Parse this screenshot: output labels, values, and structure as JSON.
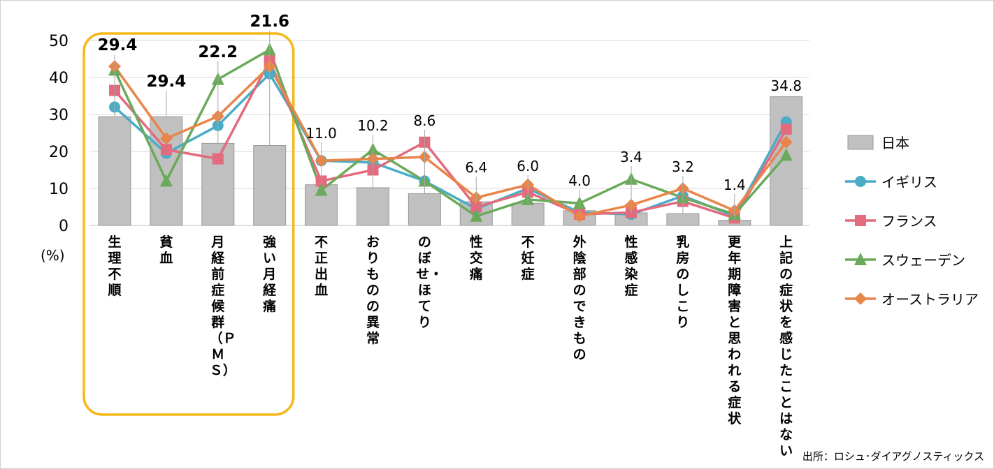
{
  "chart_data": {
    "type": "bar+line",
    "y_axis": {
      "min": 0,
      "max": 50,
      "ticks": [
        0,
        10,
        20,
        30,
        40,
        50
      ],
      "unit": "(%)"
    },
    "categories": [
      "生理不順",
      "貧血",
      "月経前症候群（PMS）",
      "強い月経痛",
      "不正出血",
      "おりものの異常",
      "のぼせ・ほてり",
      "性交痛",
      "不妊症",
      "外陰部のできもの",
      "性感染症",
      "乳房のしこり",
      "更年期障害と思われる症状",
      "上記の症状を感じたことはない"
    ],
    "bars": {
      "name": "日本",
      "color": "#c0c0c0",
      "values": [
        29.4,
        29.4,
        22.2,
        21.6,
        11.0,
        10.2,
        8.6,
        6.4,
        6.0,
        4.0,
        3.4,
        3.2,
        1.4,
        34.8
      ],
      "data_labels": [
        "29.4",
        "29.4",
        "22.2",
        "21.6",
        "11.0",
        "10.2",
        "8.6",
        "6.4",
        "6.0",
        "4.0",
        "3.4",
        "3.2",
        "1.4",
        "34.8"
      ],
      "bold_labels": [
        true,
        true,
        true,
        true,
        false,
        false,
        false,
        false,
        false,
        false,
        false,
        false,
        false,
        false
      ]
    },
    "series": [
      {
        "name": "イギリス",
        "color": "#4bacc6",
        "marker": "circle",
        "values": [
          32,
          19.5,
          27,
          41,
          17.5,
          17,
          12,
          4.5,
          10,
          3.5,
          3,
          8,
          2.5,
          28
        ]
      },
      {
        "name": "フランス",
        "color": "#e26b7e",
        "marker": "square",
        "values": [
          36.5,
          20.5,
          18,
          44.5,
          12,
          15,
          22.5,
          5,
          9,
          3,
          3.5,
          6.5,
          2,
          26
        ]
      },
      {
        "name": "スウェーデン",
        "color": "#6aaa5a",
        "marker": "triangle",
        "values": [
          42,
          12,
          39.5,
          47.5,
          9.5,
          20.5,
          12,
          2.5,
          7,
          6,
          12.5,
          7.5,
          3,
          19
        ]
      },
      {
        "name": "オーストラリア",
        "color": "#e8854a",
        "marker": "diamond",
        "values": [
          43,
          23.5,
          29.5,
          43,
          17.5,
          18,
          18.5,
          7.5,
          11,
          2.5,
          5.5,
          10,
          4,
          22.5
        ]
      }
    ],
    "highlight": {
      "from": "生理不順",
      "to": "強い月経痛",
      "color": "#f5b918"
    },
    "legend_position": "right",
    "source": "出所：ロシュ･ダイアグノスティックス"
  }
}
